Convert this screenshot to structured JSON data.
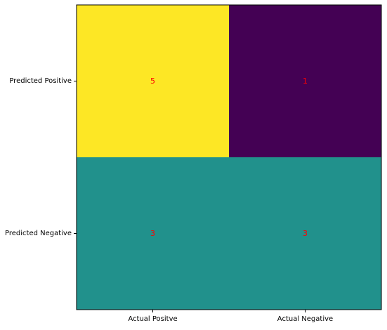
{
  "chart_data": {
    "type": "heatmap",
    "rows": [
      "Predicted Positive",
      "Predicted Negative"
    ],
    "columns": [
      "Actual Positve",
      "Actual Negative"
    ],
    "values": [
      [
        5,
        1
      ],
      [
        3,
        3
      ]
    ],
    "value_range": [
      1,
      5
    ],
    "colormap": "viridis",
    "annotation_color": "#ff0000",
    "grid": false,
    "legend": "none"
  }
}
